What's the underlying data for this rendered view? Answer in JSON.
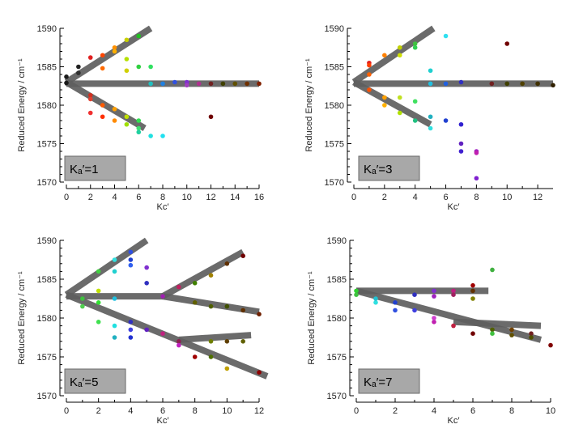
{
  "chart_data": [
    {
      "type": "scatter",
      "panel_label": "Kₐ′=1",
      "ylabel": "Reduced Energy / cm⁻¹",
      "xlabel": "Kc′",
      "xlim": [
        0,
        16
      ],
      "ylim": [
        1570,
        1590
      ],
      "xticks": [
        0,
        2,
        4,
        6,
        8,
        10,
        12,
        14,
        16
      ],
      "yticks": [
        1570,
        1575,
        1580,
        1585,
        1590
      ],
      "fit_lines": [
        {
          "x": [
            0,
            7
          ],
          "y": [
            1583,
            1590
          ]
        },
        {
          "x": [
            0,
            16
          ],
          "y": [
            1582.8,
            1582.8
          ]
        },
        {
          "x": [
            0,
            6.5
          ],
          "y": [
            1583,
            1577
          ]
        }
      ],
      "points": [
        {
          "x": 0,
          "y": 1583.7,
          "c": "#1a1a1a"
        },
        {
          "x": 0,
          "y": 1582.9,
          "c": "#1a1a1a"
        },
        {
          "x": 1,
          "y": 1585.0,
          "c": "#202020"
        },
        {
          "x": 1,
          "y": 1584.2,
          "c": "#303030"
        },
        {
          "x": 2,
          "y": 1586.2,
          "c": "#e02020"
        },
        {
          "x": 2,
          "y": 1581.3,
          "c": "#d03020"
        },
        {
          "x": 2,
          "y": 1580.8,
          "c": "#e04030"
        },
        {
          "x": 2,
          "y": 1579.0,
          "c": "#f03030"
        },
        {
          "x": 3,
          "y": 1586.5,
          "c": "#ff4500"
        },
        {
          "x": 3,
          "y": 1584.8,
          "c": "#ff6a00"
        },
        {
          "x": 3,
          "y": 1580.0,
          "c": "#ff5a00"
        },
        {
          "x": 3,
          "y": 1578.5,
          "c": "#ff3000"
        },
        {
          "x": 4,
          "y": 1587.5,
          "c": "#ff9000"
        },
        {
          "x": 4,
          "y": 1587.0,
          "c": "#ffb000"
        },
        {
          "x": 4,
          "y": 1579.5,
          "c": "#ffa000"
        },
        {
          "x": 4,
          "y": 1578.0,
          "c": "#ff8a00"
        },
        {
          "x": 5,
          "y": 1588.5,
          "c": "#c8d000"
        },
        {
          "x": 5,
          "y": 1586.0,
          "c": "#b5e000"
        },
        {
          "x": 5,
          "y": 1584.5,
          "c": "#d0d000"
        },
        {
          "x": 5,
          "y": 1578.5,
          "c": "#c0e000"
        },
        {
          "x": 5,
          "y": 1577.5,
          "c": "#a0e000"
        },
        {
          "x": 6,
          "y": 1589.0,
          "c": "#20c020"
        },
        {
          "x": 6,
          "y": 1585.0,
          "c": "#30d040"
        },
        {
          "x": 6,
          "y": 1578.0,
          "c": "#30e050"
        },
        {
          "x": 6,
          "y": 1577.0,
          "c": "#40e070"
        },
        {
          "x": 6,
          "y": 1576.5,
          "c": "#20d0a0"
        },
        {
          "x": 7,
          "y": 1585.0,
          "c": "#30e060"
        },
        {
          "x": 7,
          "y": 1576.0,
          "c": "#20e0e0"
        },
        {
          "x": 7,
          "y": 1582.8,
          "c": "#20c0c0"
        },
        {
          "x": 8,
          "y": 1576.0,
          "c": "#20e0f0"
        },
        {
          "x": 8,
          "y": 1582.8,
          "c": "#2080e0"
        },
        {
          "x": 9,
          "y": 1583.0,
          "c": "#3050e0"
        },
        {
          "x": 10,
          "y": 1583.0,
          "c": "#8030d0"
        },
        {
          "x": 10,
          "y": 1582.6,
          "c": "#a040c0"
        },
        {
          "x": 11,
          "y": 1582.8,
          "c": "#b03090"
        },
        {
          "x": 12,
          "y": 1578.5,
          "c": "#700000"
        },
        {
          "x": 12,
          "y": 1582.8,
          "c": "#702020"
        },
        {
          "x": 13,
          "y": 1582.8,
          "c": "#404000"
        },
        {
          "x": 14,
          "y": 1582.8,
          "c": "#605000"
        },
        {
          "x": 15,
          "y": 1582.8,
          "c": "#703000"
        },
        {
          "x": 16,
          "y": 1582.8,
          "c": "#802000"
        }
      ]
    },
    {
      "type": "scatter",
      "panel_label": "Kₐ′=3",
      "ylabel": "Reduced Energy / cm⁻¹",
      "xlabel": "Kc′",
      "xlim": [
        0,
        13
      ],
      "ylim": [
        1570,
        1590
      ],
      "xticks": [
        0,
        2,
        4,
        6,
        8,
        10,
        12
      ],
      "yticks": [
        1570,
        1575,
        1580,
        1585,
        1590
      ],
      "fit_lines": [
        {
          "x": [
            0,
            5.2
          ],
          "y": [
            1583,
            1590
          ]
        },
        {
          "x": [
            0,
            13
          ],
          "y": [
            1582.8,
            1582.8
          ]
        },
        {
          "x": [
            0,
            5
          ],
          "y": [
            1583,
            1577.5
          ]
        }
      ],
      "points": [
        {
          "x": 1,
          "y": 1585.5,
          "c": "#e02020"
        },
        {
          "x": 1,
          "y": 1585.2,
          "c": "#ff4000"
        },
        {
          "x": 1,
          "y": 1584.0,
          "c": "#ff6000"
        },
        {
          "x": 1,
          "y": 1582.0,
          "c": "#ff5000"
        },
        {
          "x": 2,
          "y": 1586.5,
          "c": "#ff8000"
        },
        {
          "x": 2,
          "y": 1581.0,
          "c": "#ffa000"
        },
        {
          "x": 2,
          "y": 1580.0,
          "c": "#ffb000"
        },
        {
          "x": 3,
          "y": 1587.5,
          "c": "#c0d000"
        },
        {
          "x": 3,
          "y": 1586.5,
          "c": "#d0e000"
        },
        {
          "x": 3,
          "y": 1581.0,
          "c": "#c0e020"
        },
        {
          "x": 3,
          "y": 1579.0,
          "c": "#b0e000"
        },
        {
          "x": 4,
          "y": 1588.0,
          "c": "#40c040"
        },
        {
          "x": 4,
          "y": 1587.5,
          "c": "#30d050"
        },
        {
          "x": 4,
          "y": 1580.5,
          "c": "#40e060"
        },
        {
          "x": 4,
          "y": 1578.0,
          "c": "#20c080"
        },
        {
          "x": 5,
          "y": 1584.5,
          "c": "#20d0d0"
        },
        {
          "x": 5,
          "y": 1582.8,
          "c": "#20c0e0"
        },
        {
          "x": 5,
          "y": 1578.5,
          "c": "#20b0c0"
        },
        {
          "x": 5,
          "y": 1577.0,
          "c": "#30e0e0"
        },
        {
          "x": 6,
          "y": 1589.0,
          "c": "#30e0f0"
        },
        {
          "x": 6,
          "y": 1582.8,
          "c": "#2060e0"
        },
        {
          "x": 6,
          "y": 1578.0,
          "c": "#2040d0"
        },
        {
          "x": 7,
          "y": 1583.0,
          "c": "#3030c0"
        },
        {
          "x": 7,
          "y": 1577.5,
          "c": "#3020d0"
        },
        {
          "x": 7,
          "y": 1575.0,
          "c": "#6020c0"
        },
        {
          "x": 7,
          "y": 1574.0,
          "c": "#4020d0"
        },
        {
          "x": 8,
          "y": 1574.0,
          "c": "#a020c0"
        },
        {
          "x": 8,
          "y": 1573.8,
          "c": "#c020b0"
        },
        {
          "x": 8,
          "y": 1570.5,
          "c": "#8020d0"
        },
        {
          "x": 9,
          "y": 1582.8,
          "c": "#702020"
        },
        {
          "x": 10,
          "y": 1588.0,
          "c": "#700000"
        },
        {
          "x": 10,
          "y": 1582.8,
          "c": "#404000"
        },
        {
          "x": 11,
          "y": 1582.8,
          "c": "#504000"
        },
        {
          "x": 12,
          "y": 1582.8,
          "c": "#403000"
        },
        {
          "x": 13,
          "y": 1582.6,
          "c": "#302000"
        }
      ]
    },
    {
      "type": "scatter",
      "panel_label": "Kₐ′=5",
      "ylabel": "Reduced Energy / cm⁻¹",
      "xlabel": "Kc′",
      "xlim": [
        0,
        12
      ],
      "ylim": [
        1570,
        1590
      ],
      "xticks": [
        0,
        2,
        4,
        6,
        8,
        10,
        12
      ],
      "yticks": [
        1570,
        1575,
        1580,
        1585,
        1590
      ],
      "fit_lines": [
        {
          "x": [
            0,
            5
          ],
          "y": [
            1583,
            1590
          ]
        },
        {
          "x": [
            0,
            6
          ],
          "y": [
            1582.8,
            1582.8
          ]
        },
        {
          "x": [
            6,
            11
          ],
          "y": [
            1582.8,
            1588.5
          ]
        },
        {
          "x": [
            6,
            12
          ],
          "y": [
            1582.8,
            1580.8
          ]
        },
        {
          "x": [
            0,
            12.5
          ],
          "y": [
            1583,
            1572.5
          ]
        },
        {
          "x": [
            7,
            11.5
          ],
          "y": [
            1577.2,
            1577.8
          ]
        }
      ],
      "points": [
        {
          "x": 1,
          "y": 1582.5,
          "c": "#40c040"
        },
        {
          "x": 1,
          "y": 1581.5,
          "c": "#50d050"
        },
        {
          "x": 2,
          "y": 1586.0,
          "c": "#40d040"
        },
        {
          "x": 2,
          "y": 1583.5,
          "c": "#c0e000"
        },
        {
          "x": 2,
          "y": 1582.0,
          "c": "#30e030"
        },
        {
          "x": 2,
          "y": 1579.5,
          "c": "#40e050"
        },
        {
          "x": 3,
          "y": 1587.5,
          "c": "#30e0e0"
        },
        {
          "x": 3,
          "y": 1586.0,
          "c": "#20d0d0"
        },
        {
          "x": 3,
          "y": 1582.5,
          "c": "#20c0e0"
        },
        {
          "x": 3,
          "y": 1579.0,
          "c": "#20e0e0"
        },
        {
          "x": 3,
          "y": 1577.5,
          "c": "#20b0c0"
        },
        {
          "x": 4,
          "y": 1588.5,
          "c": "#3050e0"
        },
        {
          "x": 4,
          "y": 1587.5,
          "c": "#2040d0"
        },
        {
          "x": 4,
          "y": 1586.8,
          "c": "#3060f0"
        },
        {
          "x": 4,
          "y": 1579.5,
          "c": "#3030c0"
        },
        {
          "x": 4,
          "y": 1578.5,
          "c": "#4040e0"
        },
        {
          "x": 4,
          "y": 1577.5,
          "c": "#2030d0"
        },
        {
          "x": 5,
          "y": 1586.5,
          "c": "#8030d0"
        },
        {
          "x": 5,
          "y": 1584.5,
          "c": "#3030c0"
        },
        {
          "x": 5,
          "y": 1578.5,
          "c": "#6020c0"
        },
        {
          "x": 6,
          "y": 1582.8,
          "c": "#a020b0"
        },
        {
          "x": 6,
          "y": 1578.0,
          "c": "#c02080"
        },
        {
          "x": 7,
          "y": 1584.0,
          "c": "#c02060"
        },
        {
          "x": 7,
          "y": 1577.0,
          "c": "#8a2050"
        },
        {
          "x": 7,
          "y": 1576.5,
          "c": "#c020c0"
        },
        {
          "x": 8,
          "y": 1584.5,
          "c": "#408000"
        },
        {
          "x": 8,
          "y": 1582.0,
          "c": "#606000"
        },
        {
          "x": 8,
          "y": 1575.0,
          "c": "#a00000"
        },
        {
          "x": 9,
          "y": 1585.5,
          "c": "#a08000"
        },
        {
          "x": 9,
          "y": 1581.5,
          "c": "#506000"
        },
        {
          "x": 9,
          "y": 1577.0,
          "c": "#708000"
        },
        {
          "x": 9,
          "y": 1575.0,
          "c": "#507000"
        },
        {
          "x": 10,
          "y": 1587.0,
          "c": "#603000"
        },
        {
          "x": 10,
          "y": 1581.5,
          "c": "#405000"
        },
        {
          "x": 10,
          "y": 1577.0,
          "c": "#604000"
        },
        {
          "x": 10,
          "y": 1573.5,
          "c": "#c0a000"
        },
        {
          "x": 11,
          "y": 1588.0,
          "c": "#700000"
        },
        {
          "x": 11,
          "y": 1581.0,
          "c": "#603000"
        },
        {
          "x": 11,
          "y": 1577.0,
          "c": "#606000"
        },
        {
          "x": 12,
          "y": 1580.5,
          "c": "#702000"
        },
        {
          "x": 12,
          "y": 1573.0,
          "c": "#900000"
        }
      ]
    },
    {
      "type": "scatter",
      "panel_label": "Kₐ′=7",
      "ylabel": "Reduced Energy / cm⁻¹",
      "xlabel": "Kc′",
      "xlim": [
        0,
        10
      ],
      "ylim": [
        1570,
        1590
      ],
      "xticks": [
        0,
        2,
        4,
        6,
        8,
        10
      ],
      "yticks": [
        1570,
        1575,
        1580,
        1585,
        1590
      ],
      "fit_lines": [
        {
          "x": [
            0,
            6.8
          ],
          "y": [
            1583.5,
            1583.5
          ]
        },
        {
          "x": [
            0,
            9.5
          ],
          "y": [
            1583.5,
            1577.2
          ]
        },
        {
          "x": [
            5,
            9.5
          ],
          "y": [
            1579.5,
            1579.0
          ]
        }
      ],
      "points": [
        {
          "x": 0,
          "y": 1583.0,
          "c": "#40c040"
        },
        {
          "x": 0,
          "y": 1583.5,
          "c": "#30d030"
        },
        {
          "x": 1,
          "y": 1582.0,
          "c": "#30e0e0"
        },
        {
          "x": 1,
          "y": 1582.5,
          "c": "#20c0d0"
        },
        {
          "x": 2,
          "y": 1582.0,
          "c": "#2040d0"
        },
        {
          "x": 2,
          "y": 1581.0,
          "c": "#3050e0"
        },
        {
          "x": 3,
          "y": 1583.0,
          "c": "#3030c0"
        },
        {
          "x": 3,
          "y": 1581.0,
          "c": "#4040e0"
        },
        {
          "x": 4,
          "y": 1583.5,
          "c": "#8030d0"
        },
        {
          "x": 4,
          "y": 1582.8,
          "c": "#a020c0"
        },
        {
          "x": 4,
          "y": 1579.5,
          "c": "#c020b0"
        },
        {
          "x": 4,
          "y": 1580.0,
          "c": "#d040d0"
        },
        {
          "x": 5,
          "y": 1583.5,
          "c": "#c02080"
        },
        {
          "x": 5,
          "y": 1583.0,
          "c": "#a02060"
        },
        {
          "x": 5,
          "y": 1579.0,
          "c": "#c02040"
        },
        {
          "x": 6,
          "y": 1584.2,
          "c": "#a00000"
        },
        {
          "x": 6,
          "y": 1583.5,
          "c": "#603000"
        },
        {
          "x": 6,
          "y": 1582.5,
          "c": "#808000"
        },
        {
          "x": 6,
          "y": 1578.0,
          "c": "#700000"
        },
        {
          "x": 7,
          "y": 1586.2,
          "c": "#40b040"
        },
        {
          "x": 7,
          "y": 1578.5,
          "c": "#506000"
        },
        {
          "x": 7,
          "y": 1578.0,
          "c": "#40c040"
        },
        {
          "x": 8,
          "y": 1578.5,
          "c": "#704000"
        },
        {
          "x": 8,
          "y": 1577.8,
          "c": "#605000"
        },
        {
          "x": 9,
          "y": 1578.0,
          "c": "#702020"
        },
        {
          "x": 9,
          "y": 1577.5,
          "c": "#505000"
        },
        {
          "x": 10,
          "y": 1576.5,
          "c": "#800000"
        }
      ]
    }
  ]
}
